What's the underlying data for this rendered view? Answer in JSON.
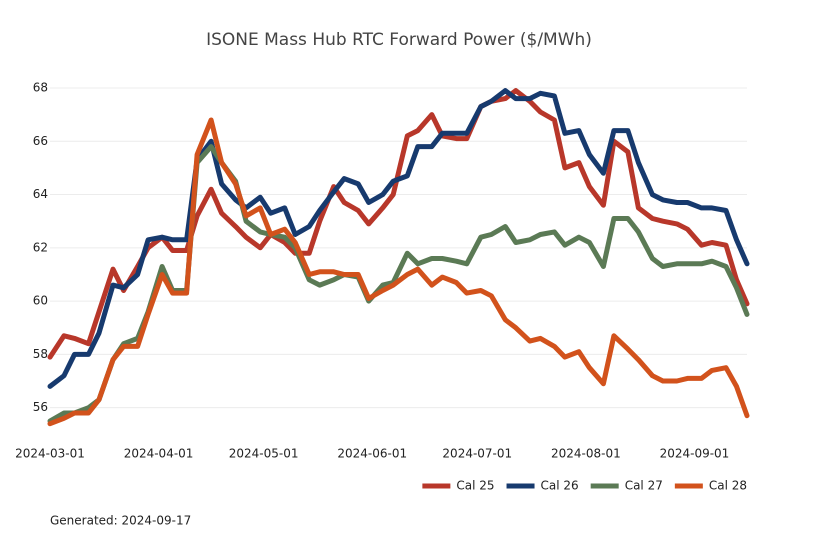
{
  "chart_data": {
    "type": "line",
    "title": "ISONE Mass Hub RTC Forward Power ($/MWh)",
    "footnote": "Generated: 2024-09-17",
    "x": [
      "2024-03-01",
      "2024-03-05",
      "2024-03-08",
      "2024-03-12",
      "2024-03-15",
      "2024-03-19",
      "2024-03-22",
      "2024-03-26",
      "2024-03-29",
      "2024-04-02",
      "2024-04-05",
      "2024-04-09",
      "2024-04-12",
      "2024-04-16",
      "2024-04-19",
      "2024-04-23",
      "2024-04-26",
      "2024-04-30",
      "2024-05-03",
      "2024-05-07",
      "2024-05-10",
      "2024-05-14",
      "2024-05-17",
      "2024-05-21",
      "2024-05-24",
      "2024-05-28",
      "2024-05-31",
      "2024-06-04",
      "2024-06-07",
      "2024-06-11",
      "2024-06-14",
      "2024-06-18",
      "2024-06-21",
      "2024-06-25",
      "2024-06-28",
      "2024-07-02",
      "2024-07-05",
      "2024-07-09",
      "2024-07-12",
      "2024-07-16",
      "2024-07-19",
      "2024-07-23",
      "2024-07-26",
      "2024-07-30",
      "2024-08-02",
      "2024-08-06",
      "2024-08-09",
      "2024-08-13",
      "2024-08-16",
      "2024-08-20",
      "2024-08-23",
      "2024-08-27",
      "2024-08-30",
      "2024-09-03",
      "2024-09-06",
      "2024-09-10",
      "2024-09-13",
      "2024-09-16"
    ],
    "series": [
      {
        "name": "Cal 25",
        "color": "#b8372a",
        "values": [
          57.9,
          58.7,
          58.6,
          58.4,
          59.6,
          61.2,
          60.4,
          61.3,
          62.0,
          62.4,
          61.9,
          61.9,
          63.2,
          64.2,
          63.3,
          62.8,
          62.4,
          62.0,
          62.5,
          62.2,
          61.8,
          61.8,
          63.0,
          64.3,
          63.7,
          63.4,
          62.9,
          63.5,
          64.0,
          66.2,
          66.4,
          67.0,
          66.2,
          66.1,
          66.1,
          67.3,
          67.5,
          67.6,
          67.9,
          67.5,
          67.1,
          66.8,
          65.0,
          65.2,
          64.3,
          63.6,
          66.0,
          65.6,
          63.5,
          63.1,
          63.0,
          62.9,
          62.7,
          62.1,
          62.2,
          62.1,
          60.8,
          59.9
        ]
      },
      {
        "name": "Cal 26",
        "color": "#173a6e",
        "values": [
          56.8,
          57.2,
          58.0,
          58.0,
          58.8,
          60.6,
          60.5,
          61.0,
          62.3,
          62.4,
          62.3,
          62.3,
          65.3,
          66.0,
          64.4,
          63.8,
          63.5,
          63.9,
          63.3,
          63.5,
          62.5,
          62.8,
          63.4,
          64.1,
          64.6,
          64.4,
          63.7,
          64.0,
          64.5,
          64.7,
          65.8,
          65.8,
          66.3,
          66.3,
          66.3,
          67.3,
          67.5,
          67.9,
          67.6,
          67.6,
          67.8,
          67.7,
          66.3,
          66.4,
          65.5,
          64.8,
          66.4,
          66.4,
          65.2,
          64.0,
          63.8,
          63.7,
          63.7,
          63.5,
          63.5,
          63.4,
          62.3,
          61.4
        ]
      },
      {
        "name": "Cal 27",
        "color": "#5b7a55",
        "values": [
          55.5,
          55.8,
          55.8,
          56.0,
          56.3,
          57.8,
          58.4,
          58.6,
          59.6,
          61.3,
          60.4,
          60.4,
          65.2,
          65.8,
          65.2,
          64.5,
          63.0,
          62.6,
          62.5,
          62.4,
          62.0,
          60.8,
          60.6,
          60.8,
          61.0,
          60.9,
          60.0,
          60.6,
          60.7,
          61.8,
          61.4,
          61.6,
          61.6,
          61.5,
          61.4,
          62.4,
          62.5,
          62.8,
          62.2,
          62.3,
          62.5,
          62.6,
          62.1,
          62.4,
          62.2,
          61.3,
          63.1,
          63.1,
          62.6,
          61.6,
          61.3,
          61.4,
          61.4,
          61.4,
          61.5,
          61.3,
          60.5,
          59.5
        ]
      },
      {
        "name": "Cal 28",
        "color": "#d2521c",
        "values": [
          55.4,
          55.6,
          55.8,
          55.8,
          56.3,
          57.8,
          58.3,
          58.3,
          59.5,
          61.0,
          60.3,
          60.3,
          65.5,
          66.8,
          65.2,
          64.4,
          63.2,
          63.5,
          62.5,
          62.7,
          62.2,
          61.0,
          61.1,
          61.1,
          61.0,
          61.0,
          60.1,
          60.4,
          60.6,
          61.0,
          61.2,
          60.6,
          60.9,
          60.7,
          60.3,
          60.4,
          60.2,
          59.3,
          59.0,
          58.5,
          58.6,
          58.3,
          57.9,
          58.1,
          57.5,
          56.9,
          58.7,
          58.2,
          57.8,
          57.2,
          57.0,
          57.0,
          57.1,
          57.1,
          57.4,
          57.5,
          56.8,
          55.7
        ]
      }
    ],
    "xlim": [
      "2024-03-01",
      "2024-09-16"
    ],
    "xticks": [
      "2024-03-01",
      "2024-04-01",
      "2024-05-01",
      "2024-06-01",
      "2024-07-01",
      "2024-08-01",
      "2024-09-01"
    ],
    "ylim": [
      55.2,
      68.6
    ],
    "yticks": [
      56,
      58,
      60,
      62,
      64,
      66,
      68
    ],
    "grid": true,
    "legend": "bottom-right"
  }
}
